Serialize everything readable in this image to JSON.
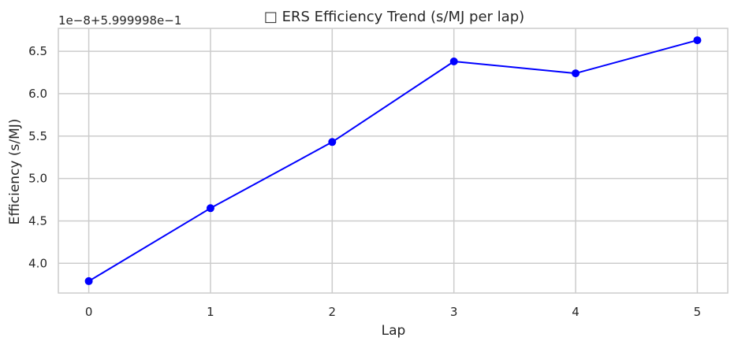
{
  "chart_data": {
    "type": "line",
    "title": "□ ERS Efficiency Trend (s/MJ per lap)",
    "xlabel": "Lap",
    "ylabel": "Efficiency (s/MJ)",
    "offset_label": "1e−8+5.999998e−1",
    "x": [
      0,
      1,
      2,
      3,
      4,
      5
    ],
    "series": [
      {
        "values": [
          3.79,
          4.65,
          5.43,
          6.38,
          6.24,
          6.63
        ]
      }
    ],
    "xlim": [
      -0.25,
      5.25
    ],
    "ylim": [
      3.65,
      6.77
    ],
    "xticks": [
      0,
      1,
      2,
      3,
      4,
      5
    ],
    "xtick_labels": [
      "0",
      "1",
      "2",
      "3",
      "4",
      "5"
    ],
    "yticks": [
      4.0,
      4.5,
      5.0,
      5.5,
      6.0,
      6.5
    ],
    "ytick_labels": [
      "4.0",
      "4.5",
      "5.0",
      "5.5",
      "6.0",
      "6.5"
    ],
    "grid": true,
    "legend": false,
    "colors": {
      "line": "#0000ff",
      "marker": "#0000ff",
      "grid": "#cccccc",
      "axes": "#cccccc"
    }
  }
}
